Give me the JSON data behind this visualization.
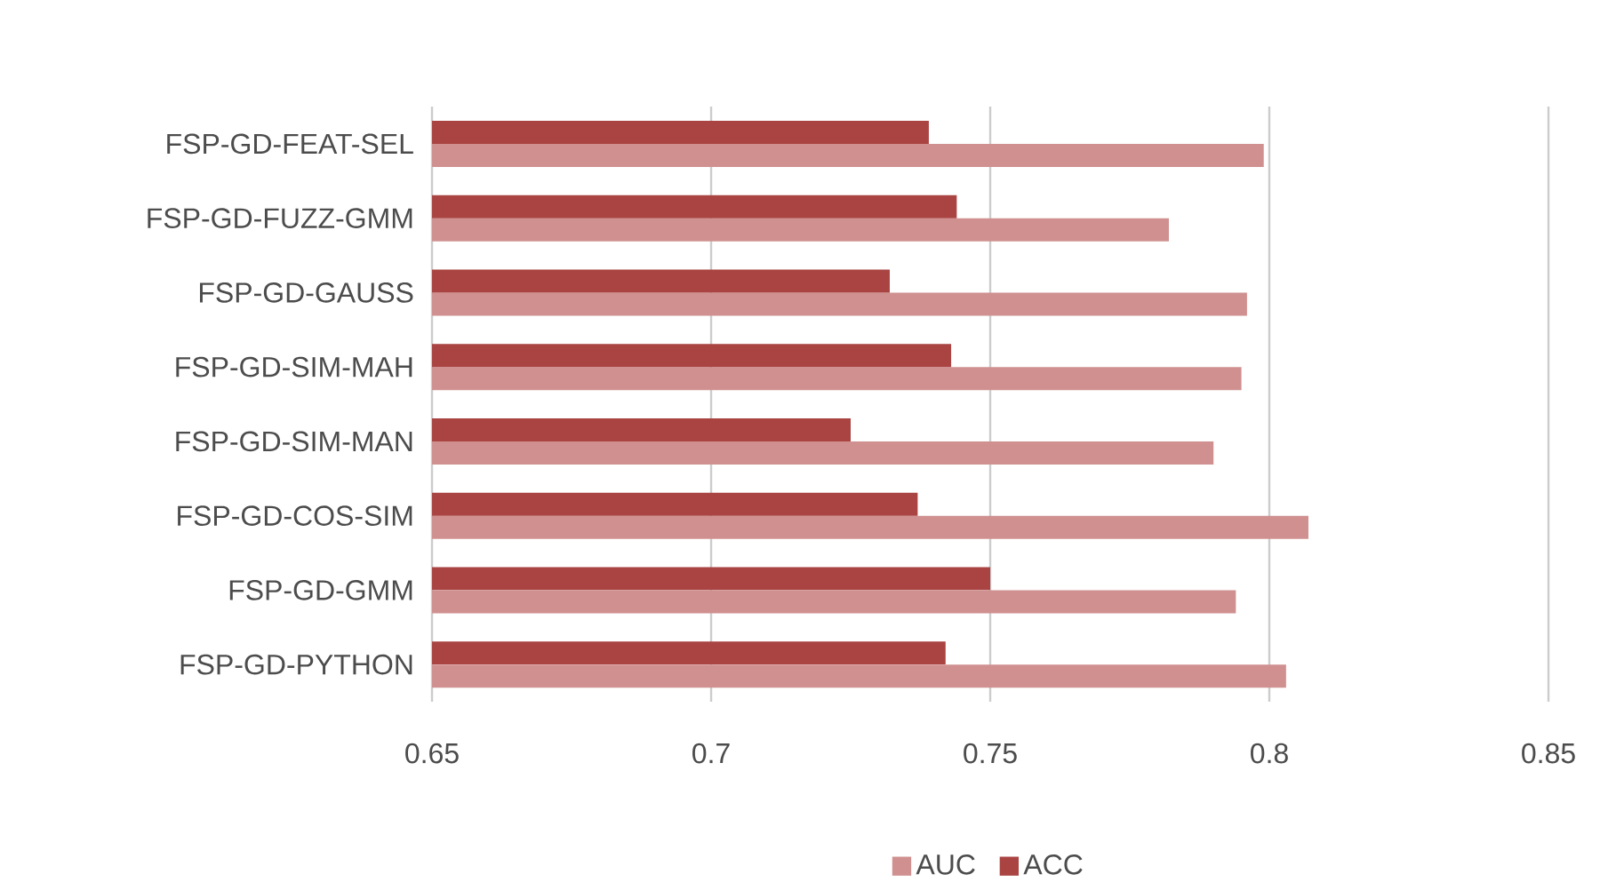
{
  "chart_data": {
    "type": "bar",
    "orientation": "horizontal",
    "categories": [
      "FSP-GD-FEAT-SEL",
      "FSP-GD-FUZZ-GMM",
      "FSP-GD-GAUSS",
      "FSP-GD-SIM-MAH",
      "FSP-GD-SIM-MAN",
      "FSP-GD-COS-SIM",
      "FSP-GD-GMM",
      "FSP-GD-PYTHON"
    ],
    "series": [
      {
        "name": "AUC",
        "color": "#d09090",
        "values": [
          0.799,
          0.782,
          0.796,
          0.795,
          0.79,
          0.807,
          0.794,
          0.803
        ]
      },
      {
        "name": "ACC",
        "color": "#a94442",
        "values": [
          0.739,
          0.744,
          0.732,
          0.743,
          0.725,
          0.737,
          0.75,
          0.742
        ]
      }
    ],
    "xlim": [
      0.65,
      0.85
    ],
    "xticks": [
      0.65,
      0.7,
      0.75,
      0.8,
      0.85
    ],
    "grid": "x",
    "legend": "bottom"
  }
}
